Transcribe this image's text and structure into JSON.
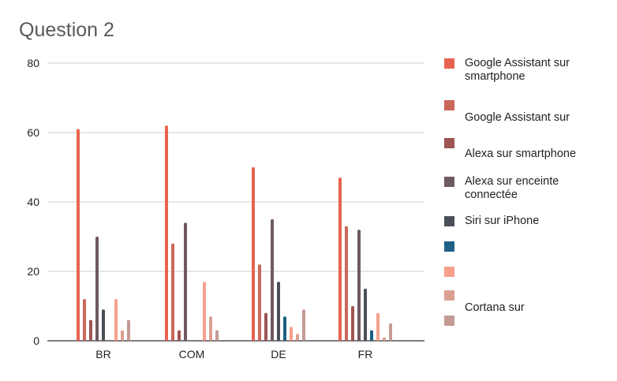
{
  "chart_data": {
    "type": "bar",
    "title": "Question 2",
    "xlabel": "",
    "ylabel": "",
    "ylim": [
      0,
      80
    ],
    "yticks": [
      0,
      20,
      40,
      60,
      80
    ],
    "grid": true,
    "legend_position": "right",
    "categories": [
      "BR",
      "COM",
      "DE",
      "FR"
    ],
    "series": [
      {
        "name": "Google Assistant sur smartphone",
        "color": "#e8634f",
        "values": [
          61,
          62,
          50,
          47
        ]
      },
      {
        "name": "Google Assistant sur",
        "color": "#c9685a",
        "values": [
          12,
          28,
          22,
          33
        ]
      },
      {
        "name": "Alexa sur smartphone",
        "color": "#9e5553",
        "values": [
          6,
          3,
          8,
          10
        ]
      },
      {
        "name": "Alexa sur enceinte connectée",
        "color": "#6e5a62",
        "values": [
          30,
          34,
          35,
          32
        ]
      },
      {
        "name": "Siri sur iPhone",
        "color": "#4b4f5a",
        "values": [
          9,
          0,
          17,
          15
        ]
      },
      {
        "name": "",
        "color": "#1f5f85",
        "values": [
          0,
          0,
          7,
          3
        ]
      },
      {
        "name": "",
        "color": "#f6a08c",
        "values": [
          12,
          17,
          4,
          8
        ]
      },
      {
        "name": "Cortana sur",
        "color": "#dca092",
        "values": [
          3,
          7,
          2,
          1
        ]
      },
      {
        "name": "",
        "color": "#c49a95",
        "values": [
          6,
          3,
          9,
          5
        ]
      }
    ]
  }
}
